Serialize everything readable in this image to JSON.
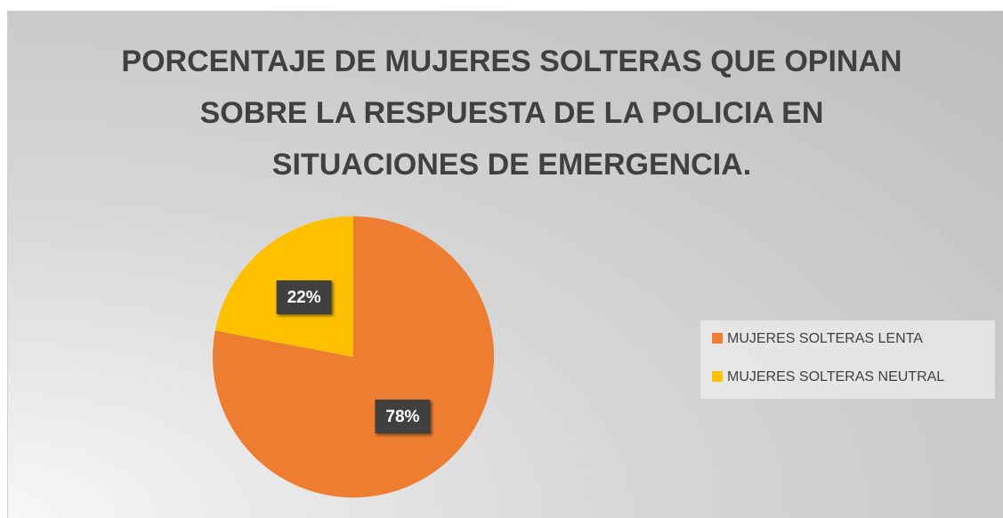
{
  "chart_data": {
    "type": "pie",
    "title": "PORCENTAJE DE MUJERES SOLTERAS QUE OPINAN SOBRE LA RESPUESTA DE LA POLICIA EN SITUACIONES DE EMERGENCIA.",
    "categories": [
      "MUJERES SOLTERAS LENTA",
      "MUJERES SOLTERAS NEUTRAL"
    ],
    "values": [
      78,
      22
    ],
    "value_labels": [
      "78%",
      "22%"
    ],
    "colors": [
      "#ed7d31",
      "#ffc000"
    ],
    "legend": "right"
  }
}
